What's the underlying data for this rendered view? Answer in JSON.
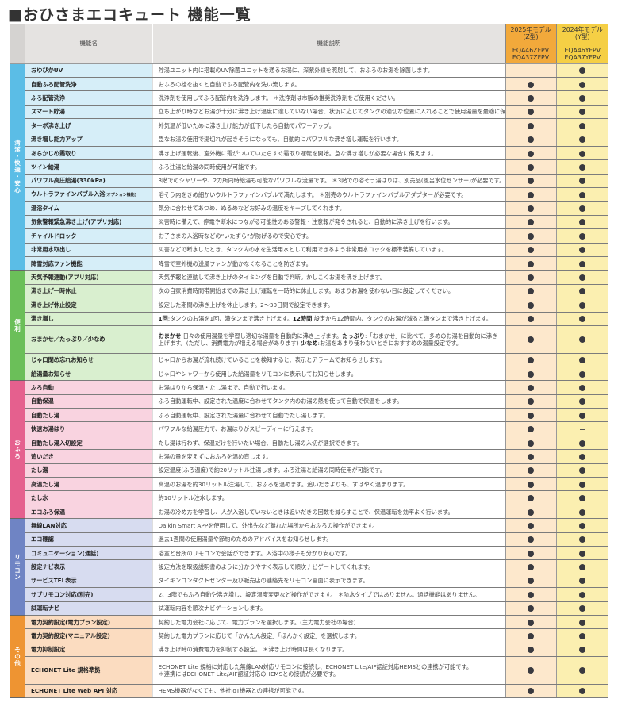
{
  "title": "■おひさまエコキュート 機能一覧",
  "header": {
    "name_col": "機能名",
    "desc_col": "機能説明",
    "model_2025": {
      "label": "2025年モデル\n(Z型)",
      "models": "EQA46ZFPV\nEQA37ZFPV"
    },
    "model_2024": {
      "label": "2024年モデル\n(Y型)",
      "models": "EQA46YFPV\nEQA37YFPV"
    }
  },
  "colors": {
    "header_bg": "#e5e3e1",
    "col_2025_header": "#f2a93b",
    "col_2024_header": "#f5cf45",
    "col_2025_bg": "#fde8cc",
    "col_2024_bg": "#fbefb0",
    "mark": "#3a3a40"
  },
  "marks_legend": {
    "available": "●",
    "unavailable": "—"
  },
  "sections": [
    {
      "label": "清潔・快適・安心",
      "color": "#5bbde6",
      "name_bg": "#d6eef8",
      "rows": [
        {
          "name": "おゆぴかUV",
          "desc": "貯湯ユニット内に搭載のUV除菌ユニットを通るお湯に、深紫外線を照射して、おふろのお湯を除菌します。",
          "z": "—",
          "y": "●"
        },
        {
          "name": "自動ふろ配管洗浄",
          "desc": "おふろの栓を抜くと自動でふろ配管内を洗い流します。",
          "z": "●",
          "y": "●"
        },
        {
          "name": "ふろ配管洗浄",
          "desc": "洗浄剤を使用してふろ配管内を洗浄します。 ＊洗浄剤は市販の推奨洗浄剤をご使用ください。",
          "z": "●",
          "y": "●"
        },
        {
          "name": "スマート貯湯",
          "desc": "立ち上がり時などお湯が十分に沸き上げ温度に達していない場合、状況に応じてタンクの適切な位置に入れることで使用湯量を最適に保ちます。",
          "z": "●",
          "y": "●"
        },
        {
          "name": "ターボ沸き上げ",
          "desc": "外気温が低いために沸き上げ能力が低下したら自動でパワーアップ。",
          "z": "●",
          "y": "●"
        },
        {
          "name": "沸き増し能力アップ",
          "desc": "急なお湯の使用で湯切れが起きそうになっても、自動的にパワフルな沸き増し運転を行います。",
          "z": "●",
          "y": "●"
        },
        {
          "name": "あらかじめ霜取り",
          "desc": "沸き上げ運転後、室外機に霜がついていたらすぐ霜取り運転を開始。急な沸き増しが必要な場合に備えます。",
          "z": "●",
          "y": "●"
        },
        {
          "name": "ツイン給湯",
          "desc": "ふろ注湯と給湯の同時使用が可能です。",
          "z": "●",
          "y": "●"
        },
        {
          "name": "パワフル高圧給湯(330kPa)",
          "desc": "3階でのシャワーや、2カ所同時給湯も可能なパワフルな流量です。 ＊3階での浴そう湯はりは、別売品(風呂水位センサー)が必要です。",
          "z": "●",
          "y": "●"
        },
        {
          "name": "ウルトラファインバブル入浴",
          "name_note": "(オプション機能)",
          "desc": "浴そう内をきめ細かいウルトラファインバブルで満たします。 ＊別売のウルトラファインバブルアダプターが必要です。",
          "z": "●",
          "y": "●"
        },
        {
          "name": "温浴タイム",
          "desc": "気分に合わせてあつめ、ぬるめなどお好みの温度をキープしてくれます。",
          "z": "●",
          "y": "●"
        },
        {
          "name": "気象警報緊急沸き上げ(アプリ対応)",
          "desc": "災害時に備えて、停電や断水につながる可能性のある警報・注意報が発令されると、自動的に沸き上げを行います。",
          "z": "●",
          "y": "●"
        },
        {
          "name": "チャイルドロック",
          "desc": "お子さまの入浴時などの“いたずら”が防げるので安心です。",
          "z": "●",
          "y": "●"
        },
        {
          "name": "非常用水取出し",
          "desc": "災害などで断水したとき、タンク内の水を生活用水として利用できるよう非常用水コックを標準装備しています。",
          "z": "●",
          "y": "●"
        },
        {
          "name": "降雪対応ファン機能",
          "desc": "降雪で室外機の送風ファンが動かなくなることを防ぎます。",
          "z": "●",
          "y": "●"
        }
      ]
    },
    {
      "label": "便利",
      "color": "#6bbf59",
      "name_bg": "#d9efcf",
      "rows": [
        {
          "name": "天気予報連動(アプリ対応)",
          "desc": "天気予報と連動して沸き上げのタイミングを自動で判断。かしこくお湯を沸き上げます。",
          "z": "●",
          "y": "●"
        },
        {
          "name": "沸き上げ一時休止",
          "desc": "次の自家消費時間帯開始までの沸き上げ運転を一時的に休止します。あまりお湯を使わない日に設定してください。",
          "z": "●",
          "y": "●"
        },
        {
          "name": "沸き上げ休止設定",
          "desc": "設定した期間の沸き上げを休止します。2〜30日間で設定できます。",
          "z": "●",
          "y": "●"
        },
        {
          "name": "沸き増し",
          "desc_parts": [
            {
              "b": "1回"
            },
            {
              "t": ":タンクのお湯を1回、満タンまで沸き上げます。"
            },
            {
              "b": "12時間"
            },
            {
              "t": ":設定から12時間内、タンクのお湯が減ると満タンまで沸き上げます。"
            }
          ],
          "z": "●",
          "y": "●"
        },
        {
          "name": "おまかせ／たっぷり／少なめ",
          "tall": true,
          "desc_parts": [
            {
              "b": "おまかせ"
            },
            {
              "t": ":日々の使用湯量を学習し適切な湯量を自動的に沸き上げます。"
            },
            {
              "b": "たっぷり"
            },
            {
              "t": ":「おまかせ」に比べて、多めのお湯を自動的に沸き上げます。(ただし、消費電力が増える場合があります) "
            },
            {
              "b": "少なめ"
            },
            {
              "t": ":お湯をあまり使わないときにおすすめの湯量設定です。"
            }
          ],
          "z": "●",
          "y": "●"
        },
        {
          "name": "じゃ口閉め忘れお知らせ",
          "desc": "じゃ口からお湯が流れ続けていることを検知すると、表示とアラームでお知らせします。",
          "z": "●",
          "y": "●"
        },
        {
          "name": "給湯量お知らせ",
          "desc": "じゃ口やシャワーから使用した給湯量をリモコンに表示してお知らせします。",
          "z": "●",
          "y": "●"
        }
      ]
    },
    {
      "label": "おふろ",
      "color": "#e5608e",
      "name_bg": "#f9d3e0",
      "rows": [
        {
          "name": "ふろ自動",
          "desc": "お湯はりから保温・たし湯まで、自動で行います。",
          "z": "●",
          "y": "●"
        },
        {
          "name": "自動保温",
          "desc": "ふろ自動運転中、設定された温度に合わせてタンク内のお湯の熱を使って自動で保温をします。",
          "z": "●",
          "y": "●"
        },
        {
          "name": "自動たし湯",
          "desc": "ふろ自動運転中、設定された湯量に合わせて自動でたし湯します。",
          "z": "●",
          "y": "●"
        },
        {
          "name": "快速お湯はり",
          "desc": "パワフルな給湯圧力で、お湯はりがスピーディーに行えます。",
          "z": "●",
          "y": "—"
        },
        {
          "name": "自動たし湯入切設定",
          "desc": "たし湯は行わず、保温だけを行いたい場合、自動たし湯の入切が選択できます。",
          "z": "●",
          "y": "●"
        },
        {
          "name": "追いだき",
          "desc": "お湯の量を変えずにおふろを温め直します。",
          "z": "●",
          "y": "●"
        },
        {
          "name": "たし湯",
          "desc": "設定温度(ふろ温度)で約20リットル注湯します。ふろ注湯と給湯の同時使用が可能です。",
          "z": "●",
          "y": "●"
        },
        {
          "name": "高温たし湯",
          "desc": "高温のお湯を約30リットル注湯して、おふろを温めます。追いだきよりも、すばやく温まります。",
          "z": "●",
          "y": "●"
        },
        {
          "name": "たし水",
          "desc": "約10リットル注水します。",
          "z": "●",
          "y": "●"
        },
        {
          "name": "エコふろ保温",
          "desc": "お湯の冷め方を学習し、人が入浴していないときは追いだきの回数を減らすことで、保温運転を効率よく行います。",
          "z": "●",
          "y": "●"
        }
      ]
    },
    {
      "label": "リモコン",
      "color": "#6f84c4",
      "name_bg": "#d7dcf0",
      "rows": [
        {
          "name": "無線LAN対応",
          "desc": "Daikin Smart APPを使用して、外出先など離れた場所からおふろの操作ができます。",
          "z": "●",
          "y": "●"
        },
        {
          "name": "エコ確認",
          "desc": "過去1週間の使用湯量や節約のためのアドバイスをお知らせします。",
          "z": "●",
          "y": "●"
        },
        {
          "name": "コミュニケーション(通話)",
          "desc": "浴室と台所のリモコンで会話ができます。入浴中の様子も分かり安心です。",
          "z": "●",
          "y": "●"
        },
        {
          "name": "設定ナビ表示",
          "desc": "設定方法を取扱説明書のように分かりやすく表示して順次ナビゲートしてくれます。",
          "z": "●",
          "y": "●"
        },
        {
          "name": "サービスTEL表示",
          "desc": "ダイキンコンタクトセンター及び販売店の連絡先をリモコン画面に表示できます。",
          "z": "●",
          "y": "●"
        },
        {
          "name": "サブリモコン対応(別売)",
          "desc": "2、3階でもふろ自動や沸き増し、設定温度変更など操作ができます。 ＊防水タイプではありません。通話機能はありません。",
          "z": "●",
          "y": "●"
        },
        {
          "name": "試運転ナビ",
          "desc": "試運転内容を順次ナビゲーションします。",
          "z": "●",
          "y": "●"
        }
      ]
    },
    {
      "label": "その他",
      "color": "#ee9432",
      "name_bg": "#fbdcc0",
      "rows": [
        {
          "name": "電力契約設定(電力プラン設定)",
          "desc": "契約した電力会社に応じて、電力プランを選択します。(主力電力会社の場合)",
          "z": "●",
          "y": "●"
        },
        {
          "name": "電力契約設定(マニュアル設定)",
          "desc": "契約した電力プランに応じて「かんたん設定」「ほんかく設定」を選択します。",
          "z": "●",
          "y": "●"
        },
        {
          "name": "電力抑制設定",
          "desc": "沸き上げ時の消費電力を抑制する設定。 ＊沸き上げ時間は長くなります。",
          "z": "●",
          "y": "●"
        },
        {
          "name": "ECHONET Lite 規格準拠",
          "tall": true,
          "desc_parts": [
            {
              "t": "ECHONET Lite 規格に対応した無線LAN対応リモコンに接続し、ECHONET Lite/AIF認証対応HEMSとの連携が可能です。"
            },
            {
              "br": true
            },
            {
              "t": "＊連携にはECHONET Lite/AIF認証対応のHEMSとの接続が必要です。"
            }
          ],
          "z": "●",
          "y": "●"
        },
        {
          "name": "ECHONET Lite Web API 対応",
          "desc": "HEMS機器がなくても、他社IoT機器との連携が可能です。",
          "z": "●",
          "y": "●"
        }
      ]
    }
  ]
}
